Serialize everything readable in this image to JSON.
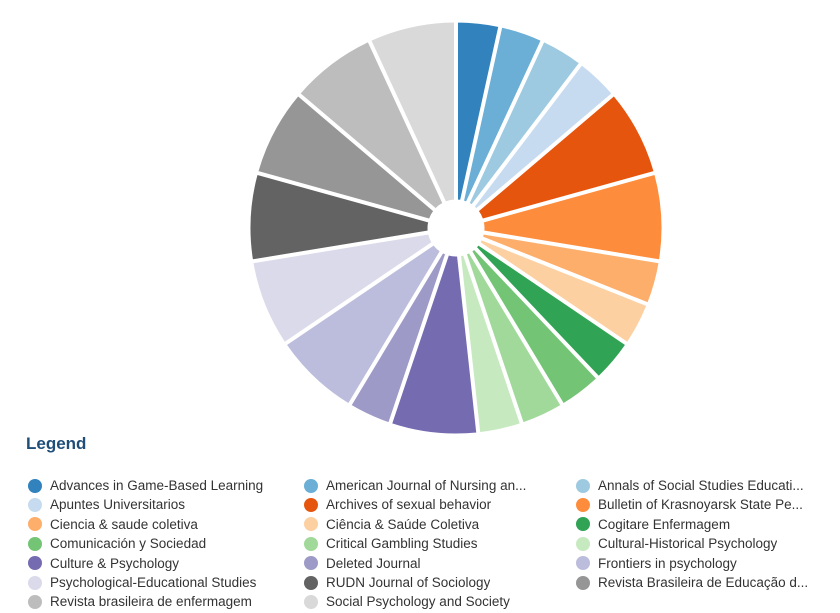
{
  "legend_title": "Legend",
  "chart_data": {
    "type": "pie",
    "title": "",
    "legend_position": "bottom",
    "slices": [
      {
        "label": "Advances in Game-Based Learning",
        "value": 1,
        "color": "#3182bd"
      },
      {
        "label": "American Journal of Nursing an...",
        "value": 1,
        "color": "#6baed6"
      },
      {
        "label": "Annals of Social Studies Educati...",
        "value": 1,
        "color": "#9ecae1"
      },
      {
        "label": "Apuntes Universitarios",
        "value": 1,
        "color": "#c6dbef"
      },
      {
        "label": "Archives of sexual behavior",
        "value": 2,
        "color": "#e6550d"
      },
      {
        "label": "Bulletin of Krasnoyarsk State Pe...",
        "value": 2,
        "color": "#fd8d3c"
      },
      {
        "label": "Ciencia & saude coletiva",
        "value": 1,
        "color": "#fdae6b"
      },
      {
        "label": "Ciência & Saúde Coletiva",
        "value": 1,
        "color": "#fdd0a2"
      },
      {
        "label": "Cogitare Enfermagem",
        "value": 1,
        "color": "#31a354"
      },
      {
        "label": "Comunicación y Sociedad",
        "value": 1,
        "color": "#74c476"
      },
      {
        "label": "Critical Gambling Studies",
        "value": 1,
        "color": "#a1d99b"
      },
      {
        "label": "Cultural-Historical Psychology",
        "value": 1,
        "color": "#c7e9c0"
      },
      {
        "label": "Culture & Psychology",
        "value": 2,
        "color": "#756bb1"
      },
      {
        "label": "Deleted Journal",
        "value": 1,
        "color": "#9e9ac8"
      },
      {
        "label": "Frontiers in psychology",
        "value": 2,
        "color": "#bcbddc"
      },
      {
        "label": "Psychological-Educational Studies",
        "value": 2,
        "color": "#dadaeb"
      },
      {
        "label": "RUDN Journal of Sociology",
        "value": 2,
        "color": "#636363"
      },
      {
        "label": "Revista Brasileira de Educação d...",
        "value": 2,
        "color": "#969696"
      },
      {
        "label": "Revista brasileira de enfermagem",
        "value": 2,
        "color": "#bdbdbd"
      },
      {
        "label": "Social Psychology and Society",
        "value": 2,
        "color": "#d9d9d9"
      }
    ]
  }
}
